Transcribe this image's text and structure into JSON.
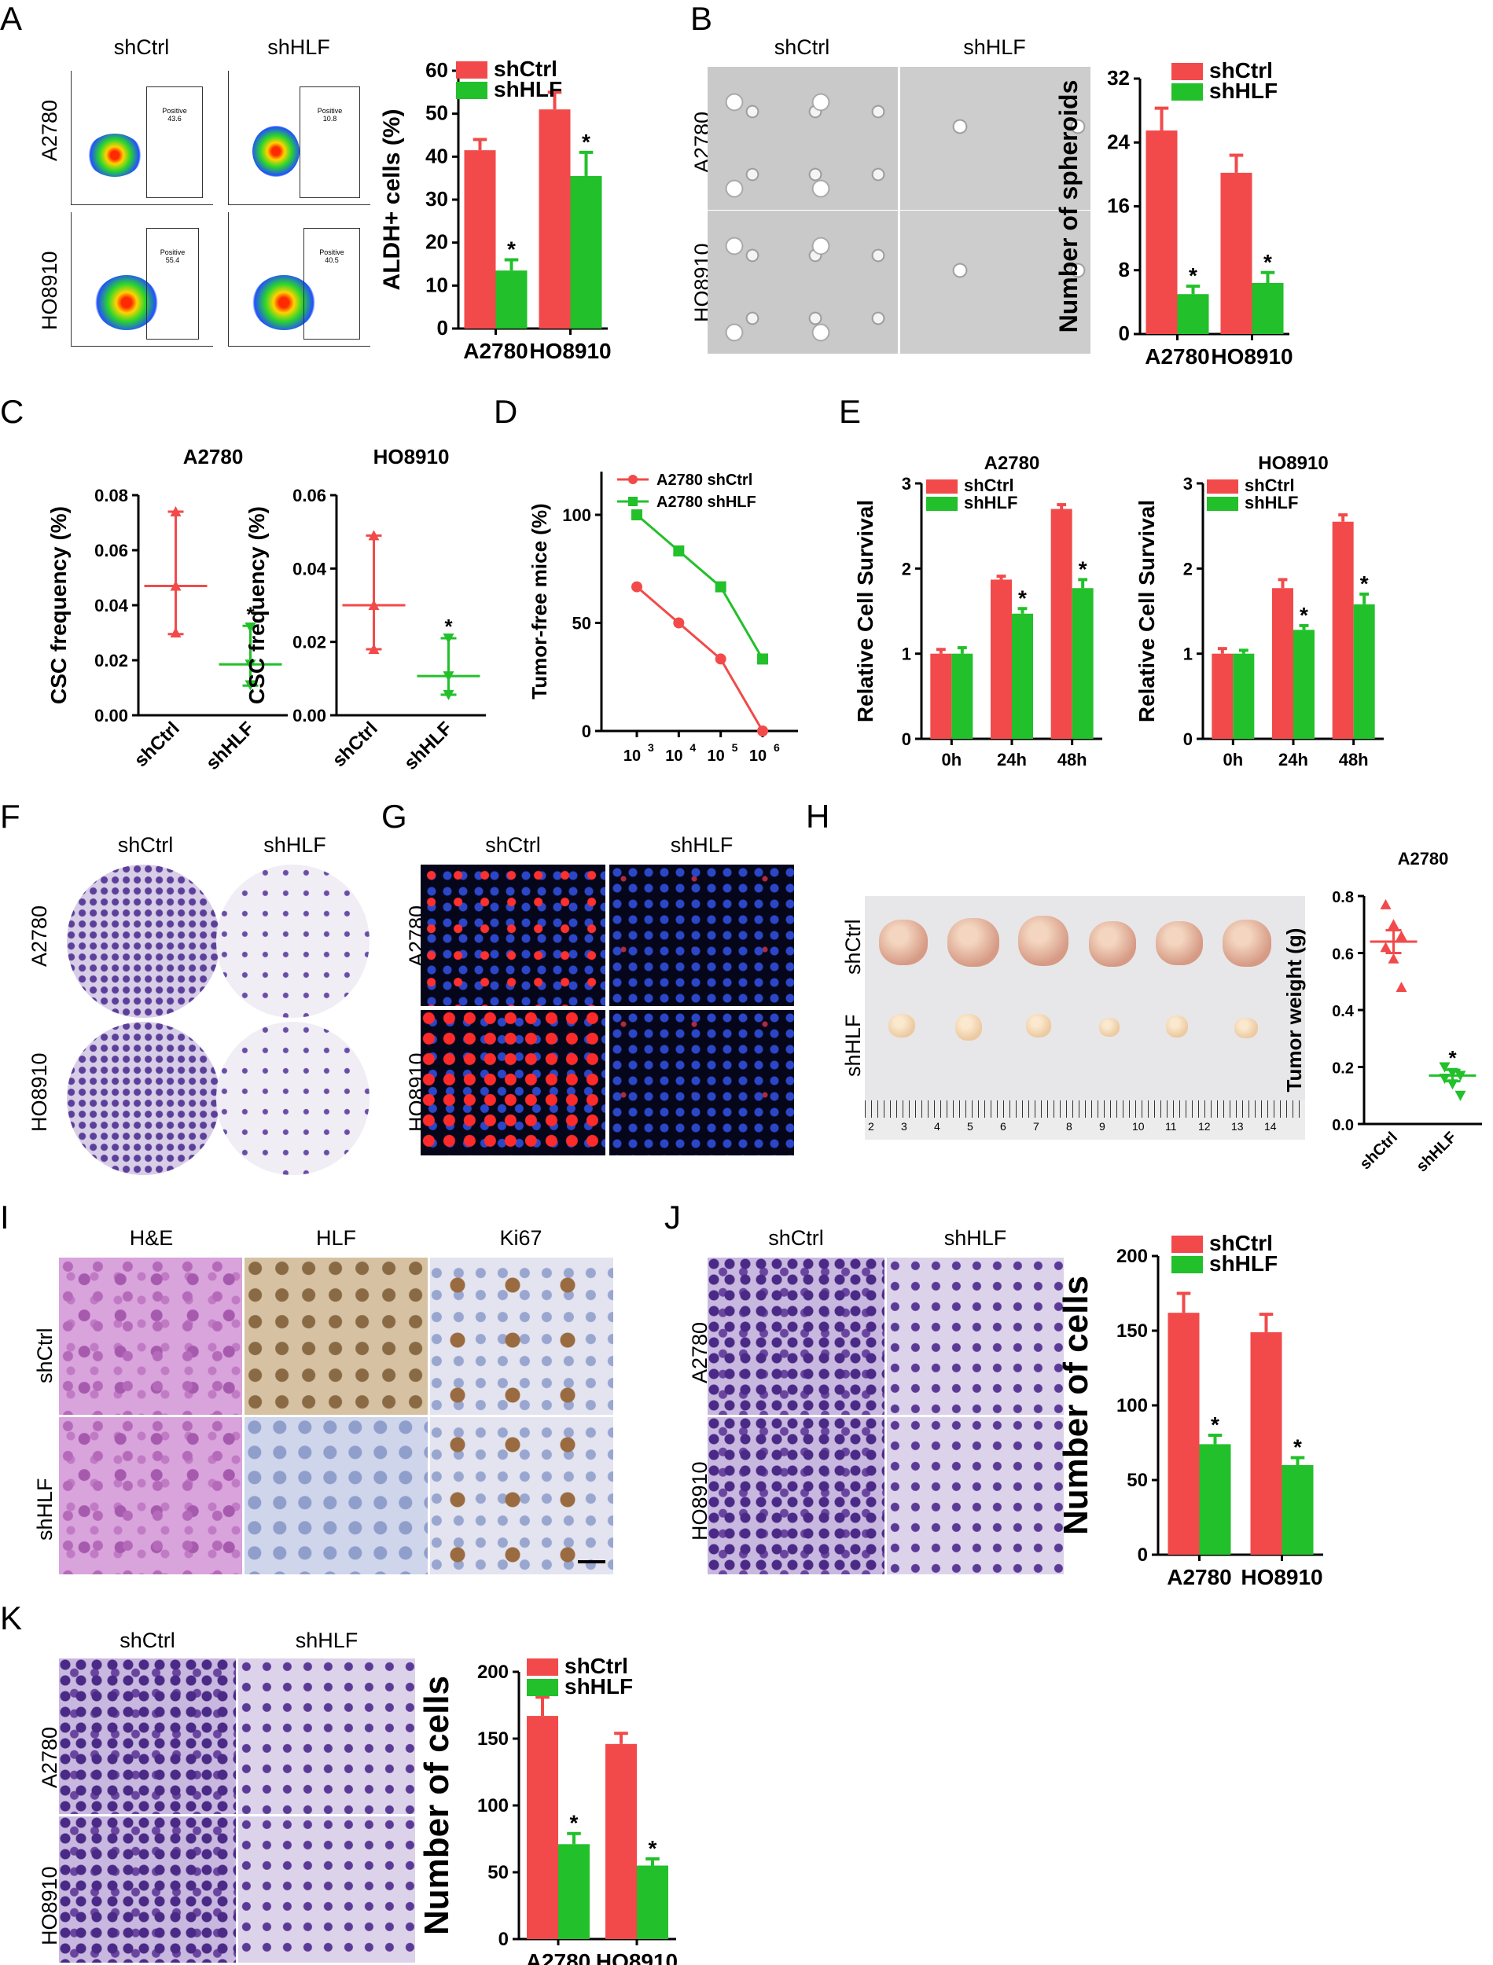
{
  "panel_letters": [
    "A",
    "B",
    "C",
    "D",
    "E",
    "F",
    "G",
    "H",
    "I",
    "J",
    "K"
  ],
  "conditions": {
    "ctrl": "shCtrl",
    "kd": "shHLF"
  },
  "cell_lines": [
    "A2780",
    "HO8910"
  ],
  "colors": {
    "ctrl": "#f24a4a",
    "kd": "#22c02a",
    "dark": "#111111"
  },
  "panel_a": {
    "flow_label": "Positive",
    "flow_values": [
      "43.6",
      "10.8",
      "55.4",
      "40.5"
    ]
  },
  "panel_h": {
    "photo_rows": [
      "shCtrl",
      "shHLF"
    ],
    "ruler_ticks": [
      "2",
      "3",
      "4",
      "5",
      "6",
      "7",
      "8",
      "9",
      "10",
      "11",
      "12",
      "13",
      "14"
    ]
  },
  "panel_i": {
    "stains": [
      "H&E",
      "HLF",
      "Ki67"
    ]
  },
  "chart_data": [
    {
      "id": "A",
      "type": "bar",
      "categories": [
        "A2780",
        "HO8910"
      ],
      "series": [
        {
          "name": "shCtrl",
          "values": [
            41.5,
            51
          ]
        },
        {
          "name": "shHLF",
          "values": [
            13.5,
            35.5
          ]
        }
      ],
      "errors": [
        [
          2.5,
          4
        ],
        [
          2.5,
          5.5
        ]
      ],
      "sig": [
        false,
        true,
        false,
        true
      ],
      "ylabel": "ALDH+ cells (%)",
      "ylim": [
        0,
        60
      ],
      "yticks": [
        "0",
        "10",
        "20",
        "30",
        "40",
        "50",
        "60"
      ],
      "legend": "top-left"
    },
    {
      "id": "B",
      "type": "bar",
      "categories": [
        "A2780",
        "HO8910"
      ],
      "series": [
        {
          "name": "shCtrl",
          "values": [
            25.5,
            20.2
          ]
        },
        {
          "name": "shHLF",
          "values": [
            5,
            6.4
          ]
        }
      ],
      "errors": [
        [
          2.8,
          2.2
        ],
        [
          1,
          1.3
        ]
      ],
      "sig": [
        false,
        true,
        false,
        true
      ],
      "ylabel": "Number of spheroids",
      "ylim": [
        0,
        32
      ],
      "yticks": [
        "0",
        "8",
        "16",
        "24",
        "32"
      ],
      "legend": "top-left"
    },
    {
      "id": "C1",
      "type": "scatter",
      "title": "A2780",
      "categories": [
        "shCtrl",
        "shHLF"
      ],
      "mean": [
        0.047,
        0.0185
      ],
      "range": [
        [
          0.0295,
          0.074
        ],
        [
          0.0108,
          0.0325
        ]
      ],
      "points": [
        [
          0.03,
          0.047,
          0.074
        ],
        [
          0.011,
          0.0185,
          0.032
        ]
      ],
      "sig": [
        false,
        true
      ],
      "ylabel": "CSC frequency (%)",
      "ylim": [
        0,
        0.08
      ],
      "yticks": [
        "0.00",
        "0.02",
        "0.04",
        "0.06",
        "0.08"
      ]
    },
    {
      "id": "C2",
      "type": "scatter",
      "title": "HO8910",
      "categories": [
        "shCtrl",
        "shHLF"
      ],
      "mean": [
        0.03,
        0.0107
      ],
      "range": [
        [
          0.018,
          0.049
        ],
        [
          0.0056,
          0.021
        ]
      ],
      "points": [
        [
          0.018,
          0.03,
          0.049
        ],
        [
          0.0056,
          0.0107,
          0.021
        ]
      ],
      "sig": [
        false,
        true
      ],
      "ylabel": "CSC frequency (%)",
      "ylim": [
        0,
        0.06
      ],
      "yticks": [
        "0.00",
        "0.02",
        "0.04",
        "0.06"
      ]
    },
    {
      "id": "D",
      "type": "line",
      "x": [
        "10",
        "10",
        "10",
        "10"
      ],
      "xexp": [
        "3",
        "4",
        "5",
        "6"
      ],
      "series": [
        {
          "name": "A2780 shCtrl",
          "values": [
            66.7,
            50,
            33.3,
            0
          ]
        },
        {
          "name": "A2780 shHLF",
          "values": [
            100,
            83.3,
            66.7,
            33.3
          ]
        }
      ],
      "ylabel": "Tumor-free mice (%)",
      "ylim": [
        0,
        120
      ],
      "yticks": [
        "0",
        "50",
        "100"
      ],
      "legend": "top-left"
    },
    {
      "id": "E1",
      "type": "bar",
      "title": "A2780",
      "categories": [
        "0h",
        "24h",
        "48h"
      ],
      "series": [
        {
          "name": "shCtrl",
          "values": [
            1.0,
            1.87,
            2.7
          ]
        },
        {
          "name": "shHLF",
          "values": [
            1.0,
            1.47,
            1.77
          ]
        }
      ],
      "errors": [
        [
          0.05,
          0.04,
          0.05
        ],
        [
          0.07,
          0.06,
          0.1
        ]
      ],
      "sig": [
        false,
        false,
        false,
        true,
        false,
        true
      ],
      "ylabel": "Relative Cell Survival",
      "ylim": [
        0,
        3
      ],
      "yticks": [
        "0",
        "1",
        "2",
        "3"
      ],
      "legend": "top-left"
    },
    {
      "id": "E2",
      "type": "bar",
      "title": "HO8910",
      "categories": [
        "0h",
        "24h",
        "48h"
      ],
      "series": [
        {
          "name": "shCtrl",
          "values": [
            1.0,
            1.77,
            2.55
          ]
        },
        {
          "name": "shHLF",
          "values": [
            1.0,
            1.28,
            1.58
          ]
        }
      ],
      "errors": [
        [
          0.06,
          0.1,
          0.08
        ],
        [
          0.04,
          0.05,
          0.12
        ]
      ],
      "sig": [
        false,
        false,
        false,
        true,
        false,
        true
      ],
      "ylabel": "Relative Cell Survival",
      "ylim": [
        0,
        3
      ],
      "yticks": [
        "0",
        "1",
        "2",
        "3"
      ],
      "legend": "top-left"
    },
    {
      "id": "H",
      "type": "scatter",
      "title": "A2780",
      "categories": [
        "shCtrl",
        "shHLF"
      ],
      "mean": [
        0.64,
        0.17
      ],
      "sem": [
        0.04,
        0.02
      ],
      "points": [
        [
          0.77,
          0.7,
          0.66,
          0.62,
          0.58,
          0.48
        ],
        [
          0.2,
          0.18,
          0.17,
          0.16,
          0.14,
          0.1
        ]
      ],
      "sig": [
        false,
        true
      ],
      "ylabel": "Tumor weight (g)",
      "ylim": [
        0,
        0.8
      ],
      "yticks": [
        "0.0",
        "0.2",
        "0.4",
        "0.6",
        "0.8"
      ]
    },
    {
      "id": "J",
      "type": "bar",
      "categories": [
        "A2780",
        "HO8910"
      ],
      "series": [
        {
          "name": "shCtrl",
          "values": [
            162,
            149
          ]
        },
        {
          "name": "shHLF",
          "values": [
            74,
            60
          ]
        }
      ],
      "errors": [
        [
          13,
          12
        ],
        [
          6,
          5
        ]
      ],
      "sig": [
        false,
        true,
        false,
        true
      ],
      "ylabel": "Number of cells",
      "ylim": [
        0,
        200
      ],
      "yticks": [
        "0",
        "50",
        "100",
        "150",
        "200"
      ],
      "legend": "top-left"
    },
    {
      "id": "K",
      "type": "bar",
      "categories": [
        "A2780",
        "HO8910"
      ],
      "series": [
        {
          "name": "shCtrl",
          "values": [
            167,
            146
          ]
        },
        {
          "name": "shHLF",
          "values": [
            71,
            55
          ]
        }
      ],
      "errors": [
        [
          14,
          8
        ],
        [
          8,
          5
        ]
      ],
      "sig": [
        false,
        true,
        false,
        true
      ],
      "ylabel": "Number of cells",
      "ylim": [
        0,
        200
      ],
      "yticks": [
        "0",
        "50",
        "100",
        "150",
        "200"
      ],
      "legend": "top-left"
    }
  ]
}
